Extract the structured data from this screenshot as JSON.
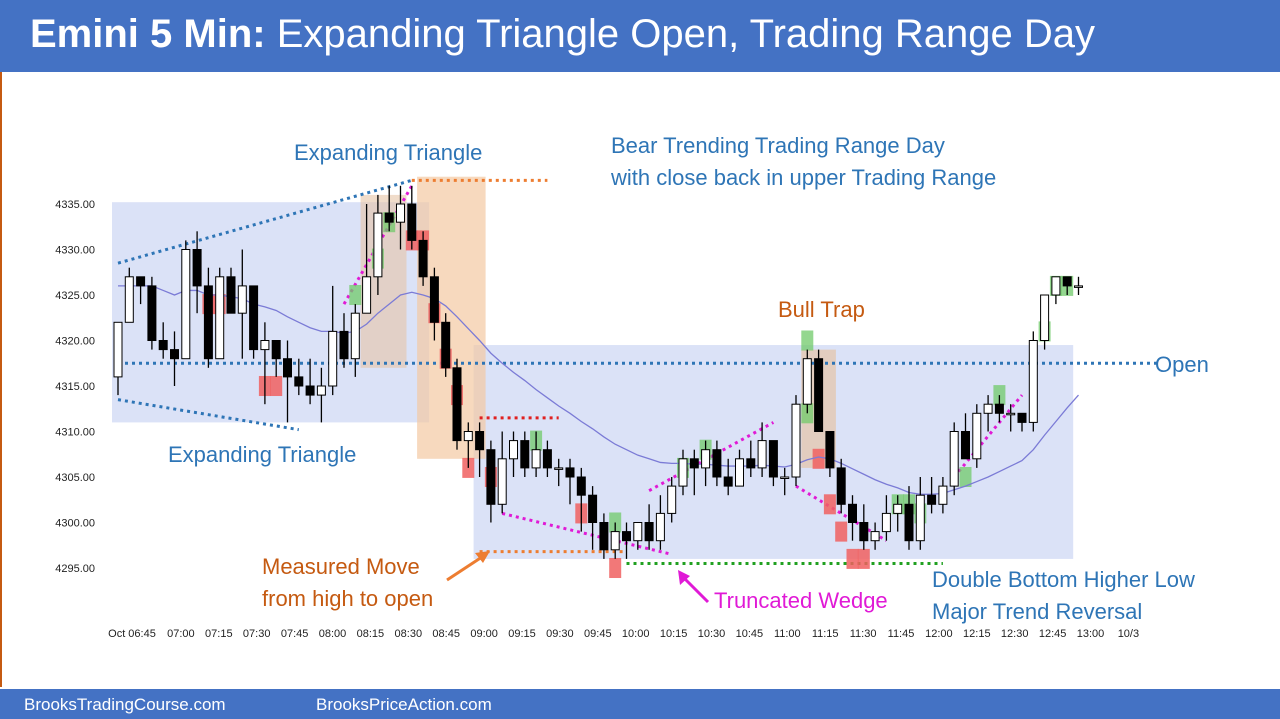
{
  "header": {
    "title_bold": "Emini 5 Min:",
    "title_rest": " Expanding Triangle Open, Trading Range Day",
    "bg": "#4472c4"
  },
  "footer": {
    "left": "BrooksTradingCourse.com",
    "right": "BrooksPriceAction.com"
  },
  "annotations": {
    "expanding_top": "Expanding Triangle",
    "expanding_bottom": "Expanding Triangle",
    "bear_line1": "Bear Trending Trading Range Day",
    "bear_line2": "with close back in upper Trading Range",
    "bull_trap": "Bull Trap",
    "open": "Open",
    "measured_line1": "Measured Move",
    "measured_line2": "from high to open",
    "wedge": "Truncated Wedge",
    "double_line1": "Double Bottom Higher Low",
    "double_line2": "Major Trend Reversal"
  },
  "colors": {
    "blue_text": "#2e75b6",
    "orange_text": "#c55a11",
    "magenta": "#e01ad6",
    "bull_box": "#70c96a",
    "bear_box": "#f06060",
    "ema": "#7b7bd6"
  },
  "chart_data": {
    "type": "candlestick",
    "title": "Emini 5 Min: Expanding Triangle Open, Trading Range Day",
    "ylim": [
      4292,
      4340
    ],
    "y_ticks": [
      "4335.00",
      "4330.00",
      "4325.00",
      "4320.00",
      "4315.00",
      "4310.00",
      "4305.00",
      "4300.00",
      "4295.00"
    ],
    "y_tick_values": [
      4335,
      4330,
      4325,
      4320,
      4315,
      4310,
      4305,
      4300,
      4295
    ],
    "x_ticks": [
      "Oct 06:45",
      "07:00",
      "07:15",
      "07:30",
      "07:45",
      "08:00",
      "08:15",
      "08:30",
      "08:45",
      "09:00",
      "09:15",
      "09:30",
      "09:45",
      "10:00",
      "10:15",
      "10:30",
      "10:45",
      "11:00",
      "11:15",
      "11:30",
      "11:45",
      "12:00",
      "12:15",
      "12:30",
      "12:45",
      "13:00",
      "10/3"
    ],
    "open_price": 4317.5,
    "bars": [
      {
        "o": 4316,
        "h": 4322,
        "l": 4314,
        "c": 4322
      },
      {
        "o": 4322,
        "h": 4328,
        "l": 4322,
        "c": 4327
      },
      {
        "o": 4327,
        "h": 4327,
        "l": 4324,
        "c": 4326
      },
      {
        "o": 4326,
        "h": 4327,
        "l": 4319,
        "c": 4320
      },
      {
        "o": 4320,
        "h": 4322,
        "l": 4318,
        "c": 4319
      },
      {
        "o": 4319,
        "h": 4321,
        "l": 4315,
        "c": 4318
      },
      {
        "o": 4318,
        "h": 4331,
        "l": 4318,
        "c": 4330
      },
      {
        "o": 4330,
        "h": 4332,
        "l": 4323,
        "c": 4326
      },
      {
        "o": 4326,
        "h": 4328,
        "l": 4317,
        "c": 4318
      },
      {
        "o": 4318,
        "h": 4328,
        "l": 4318,
        "c": 4327
      },
      {
        "o": 4327,
        "h": 4328,
        "l": 4323,
        "c": 4323
      },
      {
        "o": 4323,
        "h": 4330,
        "l": 4318,
        "c": 4326
      },
      {
        "o": 4326,
        "h": 4326,
        "l": 4318,
        "c": 4319
      },
      {
        "o": 4319,
        "h": 4322,
        "l": 4313,
        "c": 4320
      },
      {
        "o": 4320,
        "h": 4320,
        "l": 4316,
        "c": 4318
      },
      {
        "o": 4318,
        "h": 4320,
        "l": 4311,
        "c": 4316
      },
      {
        "o": 4316,
        "h": 4318,
        "l": 4314,
        "c": 4315
      },
      {
        "o": 4315,
        "h": 4318,
        "l": 4313,
        "c": 4314
      },
      {
        "o": 4314,
        "h": 4317,
        "l": 4311,
        "c": 4315
      },
      {
        "o": 4315,
        "h": 4326,
        "l": 4314,
        "c": 4321
      },
      {
        "o": 4321,
        "h": 4323,
        "l": 4317,
        "c": 4318
      },
      {
        "o": 4318,
        "h": 4324,
        "l": 4316,
        "c": 4323
      },
      {
        "o": 4323,
        "h": 4335,
        "l": 4323,
        "c": 4327
      },
      {
        "o": 4327,
        "h": 4336,
        "l": 4325,
        "c": 4334
      },
      {
        "o": 4334,
        "h": 4337,
        "l": 4332,
        "c": 4333
      },
      {
        "o": 4333,
        "h": 4337,
        "l": 4330,
        "c": 4335
      },
      {
        "o": 4335,
        "h": 4337,
        "l": 4330,
        "c": 4331
      },
      {
        "o": 4331,
        "h": 4332,
        "l": 4326,
        "c": 4327
      },
      {
        "o": 4327,
        "h": 4328,
        "l": 4320,
        "c": 4322
      },
      {
        "o": 4322,
        "h": 4323,
        "l": 4316,
        "c": 4317
      },
      {
        "o": 4317,
        "h": 4318,
        "l": 4308,
        "c": 4309
      },
      {
        "o": 4309,
        "h": 4311,
        "l": 4306,
        "c": 4310
      },
      {
        "o": 4310,
        "h": 4311,
        "l": 4305,
        "c": 4308
      },
      {
        "o": 4308,
        "h": 4309,
        "l": 4300,
        "c": 4302
      },
      {
        "o": 4302,
        "h": 4310,
        "l": 4301,
        "c": 4307
      },
      {
        "o": 4307,
        "h": 4310,
        "l": 4305,
        "c": 4309
      },
      {
        "o": 4309,
        "h": 4310,
        "l": 4305,
        "c": 4306
      },
      {
        "o": 4306,
        "h": 4310,
        "l": 4305,
        "c": 4308
      },
      {
        "o": 4308,
        "h": 4309,
        "l": 4305,
        "c": 4306
      },
      {
        "o": 4306,
        "h": 4307,
        "l": 4304,
        "c": 4306
      },
      {
        "o": 4306,
        "h": 4307,
        "l": 4302,
        "c": 4305
      },
      {
        "o": 4305,
        "h": 4306,
        "l": 4299,
        "c": 4303
      },
      {
        "o": 4303,
        "h": 4304,
        "l": 4297,
        "c": 4300
      },
      {
        "o": 4300,
        "h": 4301,
        "l": 4296,
        "c": 4297
      },
      {
        "o": 4297,
        "h": 4300,
        "l": 4296,
        "c": 4299
      },
      {
        "o": 4299,
        "h": 4300,
        "l": 4296,
        "c": 4298
      },
      {
        "o": 4298,
        "h": 4300,
        "l": 4297,
        "c": 4300
      },
      {
        "o": 4300,
        "h": 4302,
        "l": 4297,
        "c": 4298
      },
      {
        "o": 4298,
        "h": 4303,
        "l": 4297,
        "c": 4301
      },
      {
        "o": 4301,
        "h": 4305,
        "l": 4300,
        "c": 4304
      },
      {
        "o": 4304,
        "h": 4308,
        "l": 4303,
        "c": 4307
      },
      {
        "o": 4307,
        "h": 4308,
        "l": 4303,
        "c": 4306
      },
      {
        "o": 4306,
        "h": 4309,
        "l": 4304,
        "c": 4308
      },
      {
        "o": 4308,
        "h": 4309,
        "l": 4304,
        "c": 4305
      },
      {
        "o": 4305,
        "h": 4307,
        "l": 4303,
        "c": 4304
      },
      {
        "o": 4304,
        "h": 4308,
        "l": 4304,
        "c": 4307
      },
      {
        "o": 4307,
        "h": 4309,
        "l": 4305,
        "c": 4306
      },
      {
        "o": 4306,
        "h": 4311,
        "l": 4305,
        "c": 4309
      },
      {
        "o": 4309,
        "h": 4309,
        "l": 4304,
        "c": 4305
      },
      {
        "o": 4305,
        "h": 4306,
        "l": 4303,
        "c": 4305
      },
      {
        "o": 4305,
        "h": 4314,
        "l": 4304,
        "c": 4313
      },
      {
        "o": 4313,
        "h": 4319,
        "l": 4312,
        "c": 4318
      },
      {
        "o": 4318,
        "h": 4319,
        "l": 4310,
        "c": 4310
      },
      {
        "o": 4310,
        "h": 4310,
        "l": 4305,
        "c": 4306
      },
      {
        "o": 4306,
        "h": 4307,
        "l": 4301,
        "c": 4302
      },
      {
        "o": 4302,
        "h": 4303,
        "l": 4298,
        "c": 4300
      },
      {
        "o": 4300,
        "h": 4302,
        "l": 4297,
        "c": 4298
      },
      {
        "o": 4298,
        "h": 4300,
        "l": 4297,
        "c": 4299
      },
      {
        "o": 4299,
        "h": 4303,
        "l": 4298,
        "c": 4301
      },
      {
        "o": 4301,
        "h": 4303,
        "l": 4299,
        "c": 4302
      },
      {
        "o": 4302,
        "h": 4304,
        "l": 4297,
        "c": 4298
      },
      {
        "o": 4298,
        "h": 4305,
        "l": 4297,
        "c": 4303
      },
      {
        "o": 4303,
        "h": 4305,
        "l": 4301,
        "c": 4302
      },
      {
        "o": 4302,
        "h": 4305,
        "l": 4301,
        "c": 4304
      },
      {
        "o": 4304,
        "h": 4311,
        "l": 4303,
        "c": 4310
      },
      {
        "o": 4310,
        "h": 4312,
        "l": 4307,
        "c": 4307
      },
      {
        "o": 4307,
        "h": 4313,
        "l": 4306,
        "c": 4312
      },
      {
        "o": 4312,
        "h": 4314,
        "l": 4310,
        "c": 4313
      },
      {
        "o": 4313,
        "h": 4314,
        "l": 4311,
        "c": 4312
      },
      {
        "o": 4312,
        "h": 4313,
        "l": 4310,
        "c": 4312
      },
      {
        "o": 4312,
        "h": 4312,
        "l": 4310,
        "c": 4311
      },
      {
        "o": 4311,
        "h": 4321,
        "l": 4310,
        "c": 4320
      },
      {
        "o": 4320,
        "h": 4325,
        "l": 4319,
        "c": 4325
      },
      {
        "o": 4325,
        "h": 4327,
        "l": 4324,
        "c": 4327
      },
      {
        "o": 4327,
        "h": 4327,
        "l": 4325,
        "c": 4326
      },
      {
        "o": 4326,
        "h": 4327,
        "l": 4325,
        "c": 4326
      }
    ],
    "ema": [
      4326,
      4326,
      4326,
      4326,
      4325.5,
      4325,
      4325.5,
      4325.5,
      4325,
      4325,
      4324.8,
      4324.6,
      4324,
      4323.7,
      4323.3,
      4322.6,
      4322,
      4321.4,
      4321,
      4321,
      4320.8,
      4321,
      4321.8,
      4323,
      4324,
      4325,
      4325.3,
      4325,
      4324.6,
      4323.8,
      4322.6,
      4321.3,
      4320,
      4318.6,
      4317.5,
      4316.5,
      4315.6,
      4314.6,
      4313.7,
      4312.8,
      4312,
      4311.1,
      4310.3,
      4309.4,
      4308.6,
      4308,
      4307.4,
      4307,
      4306.6,
      4306.5,
      4306.5,
      4306.4,
      4306.4,
      4306.3,
      4306.2,
      4306.2,
      4306.2,
      4306.3,
      4306.2,
      4306.1,
      4306.4,
      4306.9,
      4307.2,
      4307,
      4306.5,
      4305.9,
      4305.3,
      4304.7,
      4304.2,
      4303.8,
      4303.3,
      4303.1,
      4303.1,
      4303.2,
      4303.6,
      4304,
      4304.5,
      4305,
      4305.6,
      4306.2,
      4306.8,
      4308,
      4309.6,
      4311.1,
      4312.6,
      4314
    ]
  }
}
